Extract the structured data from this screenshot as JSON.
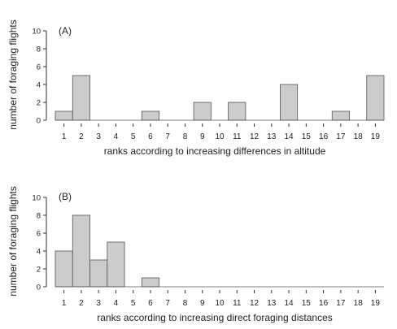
{
  "chart_data": [
    {
      "type": "bar",
      "panel_label": "(A)",
      "categories": [
        "1",
        "2",
        "3",
        "4",
        "5",
        "6",
        "7",
        "8",
        "9",
        "10",
        "11",
        "12",
        "13",
        "14",
        "15",
        "16",
        "17",
        "18",
        "19"
      ],
      "values": [
        1,
        5,
        0,
        0,
        0,
        1,
        0,
        0,
        2,
        0,
        2,
        0,
        0,
        4,
        0,
        0,
        1,
        0,
        5
      ],
      "xlabel": "ranks according to increasing differences in altitude",
      "ylabel": "number of foraging flights",
      "ylim": [
        0,
        10
      ],
      "yticks": [
        0,
        2,
        4,
        6,
        8,
        10
      ],
      "bar_color": "#cccccc",
      "edge_color": "#555555",
      "grid": false
    },
    {
      "type": "bar",
      "panel_label": "(B)",
      "categories": [
        "1",
        "2",
        "3",
        "4",
        "5",
        "6",
        "7",
        "8",
        "9",
        "10",
        "11",
        "12",
        "13",
        "14",
        "15",
        "16",
        "17",
        "18",
        "19"
      ],
      "values": [
        4,
        8,
        3,
        5,
        0,
        1,
        0,
        0,
        0,
        0,
        0,
        0,
        0,
        0,
        0,
        0,
        0,
        0,
        0
      ],
      "xlabel": "ranks according to increasing direct foraging distances",
      "ylabel": "number of foraging flights",
      "ylim": [
        0,
        10
      ],
      "yticks": [
        0,
        2,
        4,
        6,
        8,
        10
      ],
      "bar_color": "#cccccc",
      "edge_color": "#555555",
      "grid": false
    }
  ]
}
